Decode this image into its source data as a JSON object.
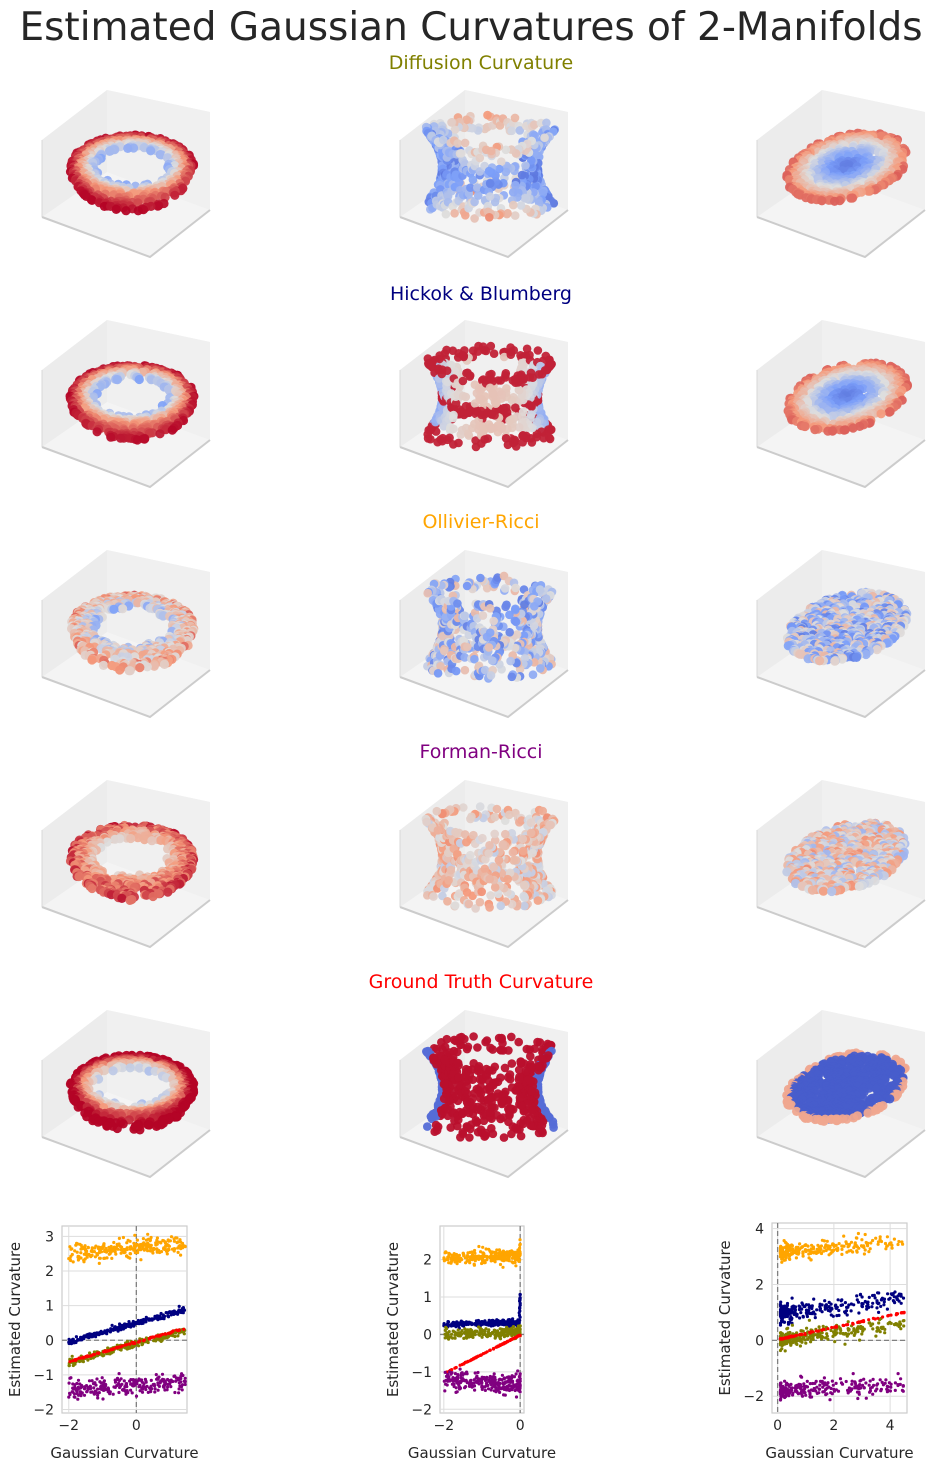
{
  "title": "Estimated Gaussian Curvatures of 2-Manifolds",
  "rows": [
    {
      "label": "Diffusion Curvature",
      "color": "#808000"
    },
    {
      "label": "Hickok & Blumberg",
      "color": "#000080"
    },
    {
      "label": "Ollivier-Ricci",
      "color": "#FFA500"
    },
    {
      "label": "Forman-Ricci",
      "color": "#800080"
    },
    {
      "label": "Ground Truth Curvature",
      "color": "#FF0000"
    }
  ],
  "surfaces": [
    "torus",
    "hyperboloid",
    "ellipsoid"
  ],
  "colormap": "coolwarm",
  "chart_data": [
    {
      "type": "scatter",
      "xlabel": "Gaussian Curvature",
      "ylabel": "Estimated Curvature",
      "xlim": [
        -2.2,
        1.5
      ],
      "ylim": [
        -2.1,
        3.3
      ],
      "xticks": [
        -2,
        0
      ],
      "yticks": [
        -2,
        -1,
        0,
        1,
        2,
        3
      ],
      "reference_lines": {
        "x": 0,
        "y": 0,
        "style": "dashed",
        "color": "#808080"
      },
      "grid": true,
      "series": [
        {
          "color": "#FFA500",
          "x_range": [
            -2,
            1.45
          ],
          "y_start": 2.5,
          "y_end": 2.8,
          "noise": 0.14
        },
        {
          "color": "#000080",
          "x_range": [
            -2,
            1.45
          ],
          "y_start": -0.05,
          "y_end": 0.9,
          "noise": 0.04
        },
        {
          "color": "#808000",
          "x_range": [
            -2,
            1.45
          ],
          "y_start": -0.62,
          "y_end": 0.28,
          "noise": 0.05
        },
        {
          "color": "#FF0000",
          "x_range": [
            -2,
            1.45
          ],
          "y_start": -0.62,
          "y_end": 0.35,
          "noise": 0.01
        },
        {
          "color": "#800080",
          "x_range": [
            -2,
            1.45
          ],
          "y_start": -1.42,
          "y_end": -1.2,
          "noise": 0.13
        }
      ]
    },
    {
      "type": "scatter",
      "xlabel": "Gaussian Curvature",
      "ylabel": "Estimated Curvature",
      "xlim": [
        -2.1,
        0.1
      ],
      "ylim": [
        -2.1,
        2.9
      ],
      "xticks": [
        -2,
        0
      ],
      "yticks": [
        -2,
        -1,
        0,
        1,
        2
      ],
      "reference_lines": {
        "x": 0,
        "y": 0,
        "style": "dashed",
        "color": "#808080"
      },
      "grid": true,
      "series": [
        {
          "color": "#FFA500",
          "x_range": [
            -2,
            0
          ],
          "y_start": 2.05,
          "y_end": 2.1,
          "noise": 0.09,
          "spike": 0.5
        },
        {
          "color": "#000080",
          "x_range": [
            -2,
            0
          ],
          "y_start": 0.28,
          "y_end": 0.32,
          "noise": 0.04,
          "spike": 1.0
        },
        {
          "color": "#808000",
          "x_range": [
            -2,
            0
          ],
          "y_start": 0.02,
          "y_end": 0.05,
          "noise": 0.07,
          "spike": 0.2
        },
        {
          "color": "#FF0000",
          "x_range": [
            -2,
            0
          ],
          "y_start": -1.05,
          "y_end": -0.02,
          "noise": 0.005
        },
        {
          "color": "#800080",
          "x_range": [
            -2,
            0
          ],
          "y_start": -1.2,
          "y_end": -1.35,
          "noise": 0.13
        }
      ]
    },
    {
      "type": "scatter",
      "xlabel": "Gaussian Curvature",
      "ylabel": "Estimated Curvature",
      "xlim": [
        -0.2,
        4.6
      ],
      "ylim": [
        -2.6,
        4.2
      ],
      "xticks": [
        0,
        2,
        4
      ],
      "yticks": [
        -2,
        0,
        2,
        4
      ],
      "reference_lines": {
        "x": 0,
        "y": 0,
        "style": "dashed",
        "color": "#808080"
      },
      "grid": true,
      "series": [
        {
          "color": "#FFA500",
          "x_range": [
            0.1,
            4.5
          ],
          "y_start": 3.15,
          "y_end": 3.55,
          "noise": 0.15
        },
        {
          "color": "#000080",
          "x_range": [
            0.1,
            4.5
          ],
          "y_start": 0.95,
          "y_end": 1.5,
          "noise": 0.17
        },
        {
          "color": "#808000",
          "x_range": [
            0.1,
            4.5
          ],
          "y_start": 0.0,
          "y_end": 0.6,
          "noise": 0.15
        },
        {
          "color": "#FF0000",
          "x_range": [
            0.1,
            4.5
          ],
          "y_start": 0.05,
          "y_end": 1.0,
          "noise": 0.01
        },
        {
          "color": "#800080",
          "x_range": [
            0.1,
            4.5
          ],
          "y_start": -1.8,
          "y_end": -1.55,
          "noise": 0.15
        }
      ]
    }
  ]
}
